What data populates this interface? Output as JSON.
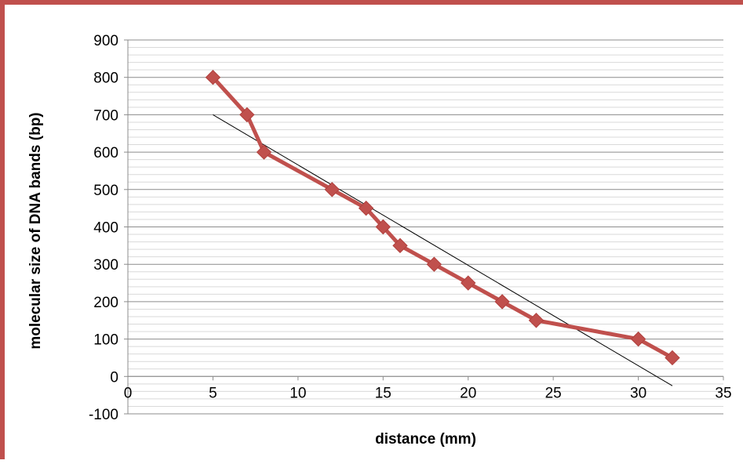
{
  "chart_data": {
    "type": "scatter",
    "title": "",
    "xlabel": "distance (mm)",
    "ylabel": "molecular size of DNA bands (bp)",
    "xlim": [
      0,
      35
    ],
    "ylim": [
      -100,
      900
    ],
    "x_ticks": [
      0,
      5,
      10,
      15,
      20,
      25,
      30,
      35
    ],
    "y_ticks": [
      -100,
      0,
      100,
      200,
      300,
      400,
      500,
      600,
      700,
      800,
      900
    ],
    "grid": "horizontal major and minor",
    "legend": "none",
    "series": [
      {
        "color": "#c0504d",
        "marker": "diamond",
        "line": true,
        "points": [
          {
            "x": 5,
            "y": 800
          },
          {
            "x": 7,
            "y": 700
          },
          {
            "x": 8,
            "y": 600
          },
          {
            "x": 12,
            "y": 500
          },
          {
            "x": 14,
            "y": 450
          },
          {
            "x": 15,
            "y": 400
          },
          {
            "x": 16,
            "y": 350
          },
          {
            "x": 18,
            "y": 300
          },
          {
            "x": 20,
            "y": 250
          },
          {
            "x": 22,
            "y": 200
          },
          {
            "x": 24,
            "y": 150
          },
          {
            "x": 30,
            "y": 100
          },
          {
            "x": 32,
            "y": 50
          }
        ]
      }
    ],
    "trendline": {
      "type": "linear",
      "color": "#000000",
      "from": {
        "x": 5,
        "y": 700
      },
      "to": {
        "x": 32,
        "y": -25
      }
    }
  }
}
